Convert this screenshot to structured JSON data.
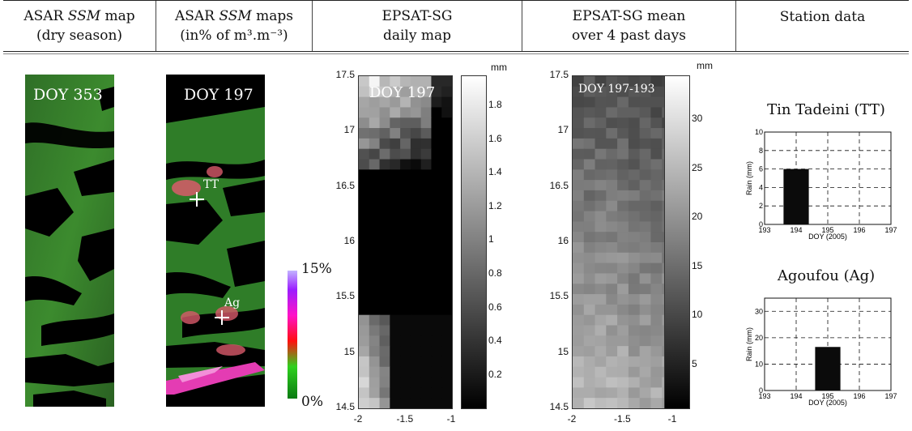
{
  "header": {
    "col1": {
      "line1_pre": "ASAR ",
      "line1_em": "SSM",
      "line1_post": " map",
      "line2": "(dry season)"
    },
    "col2": {
      "line1_pre": "ASAR ",
      "line1_em": "SSM",
      "line1_post": " maps",
      "line2": "(in% of m³.m⁻³)"
    },
    "col3": {
      "line1": "EPSAT-SG",
      "line2": "daily map"
    },
    "col4": {
      "line1": "EPSAT-SG mean",
      "line2": "over 4 past days"
    },
    "col5": {
      "line1": "Station data"
    }
  },
  "panel_asar_dry": {
    "label": "DOY 353"
  },
  "panel_asar_197": {
    "label": "DOY 197",
    "marker_tt": "TT",
    "marker_ag": "Ag"
  },
  "ssm_colorbar": {
    "max_label": "15%",
    "min_label": "0%",
    "colors": [
      "#0a7a12",
      "#2fd11e",
      "#ff1010",
      "#ff12c8",
      "#9b1eff",
      "#c2b4ff"
    ]
  },
  "epsat_daily": {
    "label": "DOY 197",
    "unit": "mm",
    "y_ticks": [
      "17.5",
      "17",
      "16.5",
      "16",
      "15.5",
      "15",
      "14.5"
    ],
    "x_ticks": [
      "-2",
      "-1.5",
      "-1"
    ],
    "cbar_ticks": [
      "1.8",
      "1.6",
      "1.4",
      "1.2",
      "1",
      "0.8",
      "0.6",
      "0.4",
      "0.2"
    ]
  },
  "epsat_mean": {
    "label": "DOY 197-193",
    "unit": "mm",
    "y_ticks": [
      "17.5",
      "17",
      "16.5",
      "16",
      "15.5",
      "15",
      "14.5"
    ],
    "x_ticks": [
      "-2",
      "-1.5",
      "-1"
    ],
    "cbar_ticks": [
      "30",
      "25",
      "20",
      "15",
      "10",
      "5"
    ]
  },
  "chart_data": [
    {
      "type": "bar",
      "title": "Tin Tadeini (TT)",
      "xlabel": "DOY (2005)",
      "ylabel": "Rain (mm)",
      "x": [
        194
      ],
      "values": [
        6
      ],
      "xlim": [
        193,
        197
      ],
      "ylim": [
        0,
        10
      ],
      "x_ticks": [
        "193",
        "194",
        "195",
        "196",
        "197"
      ],
      "y_ticks": [
        "0",
        "2",
        "4",
        "6",
        "8",
        "10"
      ],
      "grid": true
    },
    {
      "type": "bar",
      "title": "Agoufou (Ag)",
      "xlabel": "DOY (2005)",
      "ylabel": "Rain (mm)",
      "x": [
        195
      ],
      "values": [
        16.5
      ],
      "xlim": [
        193,
        197
      ],
      "ylim": [
        0,
        35
      ],
      "x_ticks": [
        "193",
        "194",
        "195",
        "196",
        "197"
      ],
      "y_ticks": [
        "0",
        "10",
        "20",
        "30"
      ],
      "grid": true
    }
  ]
}
